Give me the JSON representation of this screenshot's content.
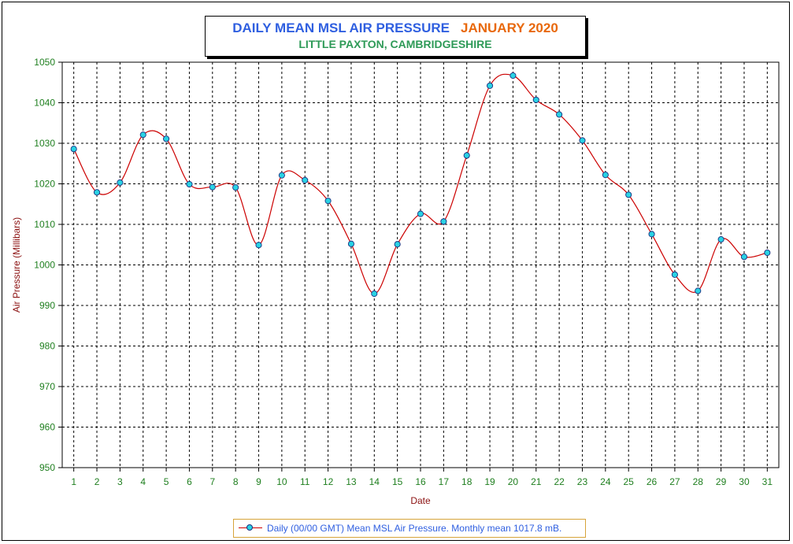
{
  "chart_data": {
    "type": "line",
    "title": "DAILY MEAN MSL AIR PRESSURE",
    "title_period": "JANUARY 2020",
    "subtitle": "LITTLE PAXTON, CAMBRIDGESHIRE",
    "xlabel": "Date",
    "ylabel": "Air Pressure (Millibars)",
    "ylim": [
      950,
      1050
    ],
    "y_ticks": [
      950,
      960,
      970,
      980,
      990,
      1000,
      1010,
      1020,
      1030,
      1040,
      1050
    ],
    "x": [
      1,
      2,
      3,
      4,
      5,
      6,
      7,
      8,
      9,
      10,
      11,
      12,
      13,
      14,
      15,
      16,
      17,
      18,
      19,
      20,
      21,
      22,
      23,
      24,
      25,
      26,
      27,
      28,
      29,
      30,
      31
    ],
    "series": [
      {
        "name": "Daily (00/00 GMT) Mean MSL Air Pressure. Monthly mean 1017.8 mB.",
        "values": [
          1028.6,
          1017.9,
          1020.3,
          1032.1,
          1031.1,
          1019.9,
          1019.2,
          1019.1,
          1004.9,
          1022.1,
          1020.9,
          1015.8,
          1005.2,
          992.9,
          1005.1,
          1012.6,
          1010.7,
          1027.0,
          1044.2,
          1046.7,
          1040.7,
          1037.1,
          1030.7,
          1022.2,
          1017.3,
          1007.6,
          997.6,
          993.6,
          1006.3,
          1002.0,
          1003.0
        ]
      }
    ],
    "grid": true,
    "legend_position": "bottom",
    "colors": {
      "line": "#cc0000",
      "marker_fill": "#29d2e3",
      "marker_edge": "#1a2f80",
      "tick_labels": "#1f7f1f",
      "axis_titles": "#8b1010",
      "title": "#2f5fe0",
      "title_period": "#e8680c",
      "subtitle": "#2e9a57",
      "legend_text": "#2f5fe0"
    }
  }
}
